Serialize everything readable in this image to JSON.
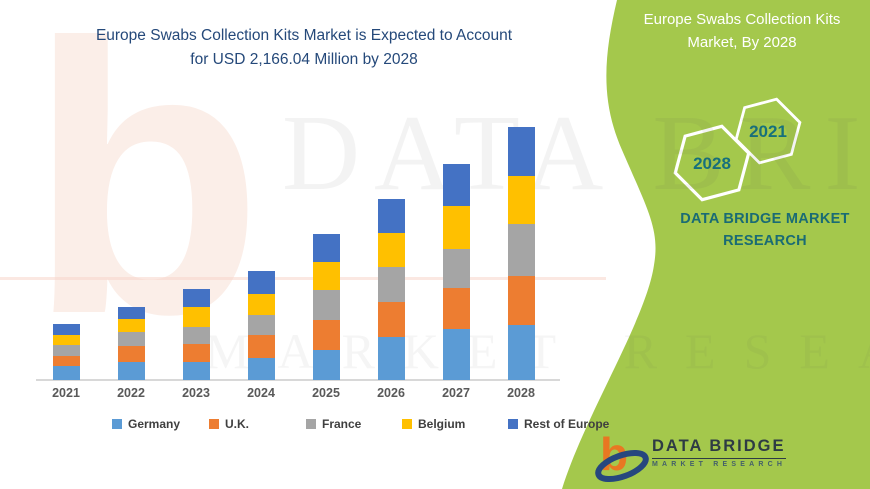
{
  "header": {
    "chart_title_line1": "Europe Swabs Collection Kits Market is Expected to Account",
    "chart_title_line2": "for USD 2,166.04 Million by 2028"
  },
  "side_panel": {
    "title_line1": "Europe Swabs Collection  Kits",
    "title_line2": "Market, By 2028",
    "hexagons": [
      {
        "label": "2028"
      },
      {
        "label": "2021"
      }
    ],
    "brand_line1": "DATA BRIDGE MARKET",
    "brand_line2": "RESEARCH",
    "background_color": "#A4C84C",
    "accent_text_color": "#16707C",
    "hexagon_outline_color": "#FFFFFF"
  },
  "watermarks": {
    "big_letter": "b",
    "row1": "DATA BRIDGE",
    "row2": "MARKET RESEARCH"
  },
  "footer_logo": {
    "name": "DATA BRIDGE",
    "subtitle": "MARKET RESEARCH",
    "mark_letter": "b",
    "mark_orange": "#E87722",
    "mark_blue": "#26477E"
  },
  "colors": {
    "title_text": "#25497A",
    "panel_green": "#A4C84C",
    "axis_line": "#D8D8D8",
    "x_label_text": "#595959"
  },
  "chart_data": {
    "type": "bar",
    "stacked": true,
    "title": "Europe Swabs Collection Kits Market is Expected to Account for USD 2,166.04 Million by 2028",
    "categories": [
      "2021",
      "2022",
      "2023",
      "2024",
      "2025",
      "2026",
      "2027",
      "2028"
    ],
    "series": [
      {
        "name": "Germany",
        "color": "#5B9BD5",
        "values": [
          120,
          154,
          154,
          188,
          257,
          368,
          437,
          470
        ]
      },
      {
        "name": "U.K.",
        "color": "#ED7D31",
        "values": [
          86,
          137,
          154,
          197,
          257,
          300,
          351,
          420
        ]
      },
      {
        "name": "France",
        "color": "#A5A5A5",
        "values": [
          94,
          120,
          146,
          171,
          257,
          300,
          334,
          445
        ]
      },
      {
        "name": "Belgium",
        "color": "#FFC000",
        "values": [
          86,
          111,
          171,
          180,
          240,
          291,
          368,
          411
        ]
      },
      {
        "name": "Rest of Europe",
        "color": "#4472C4",
        "values": [
          94,
          103,
          154,
          197,
          240,
          291,
          360,
          420
        ]
      }
    ],
    "totals": [
      480,
      625,
      779,
      933,
      1251,
      1550,
      1850,
      2166
    ],
    "units": "USD Million (estimated from bar heights; chart shows no y-axis, 2028 total stated as 2,166.04)",
    "xlabel": "",
    "ylabel": "",
    "grid": false,
    "y_axis_visible": false,
    "legend_position": "bottom"
  }
}
